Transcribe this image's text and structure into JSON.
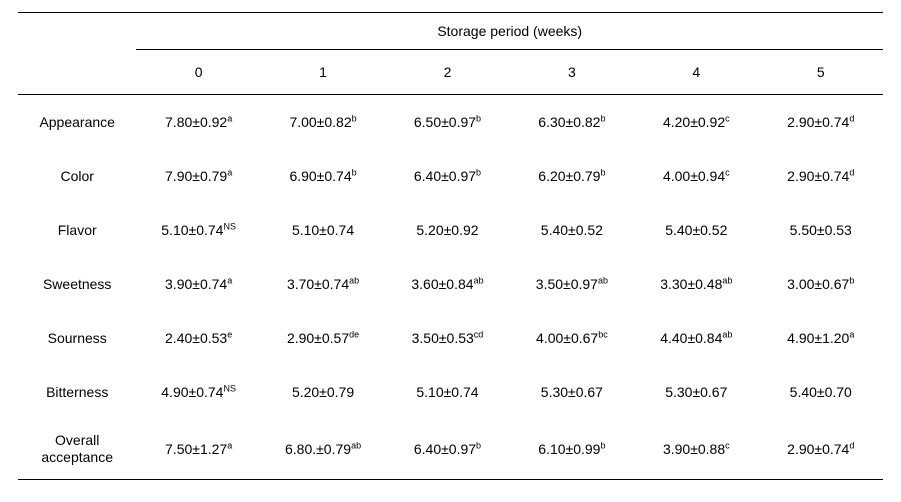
{
  "spanner_label": "Storage period (weeks)",
  "columns": [
    "0",
    "1",
    "2",
    "3",
    "4",
    "5"
  ],
  "rows": [
    {
      "label": "Appearance",
      "cells": [
        {
          "val": "7.80±0.92",
          "sup": "a"
        },
        {
          "val": "7.00±0.82",
          "sup": "b"
        },
        {
          "val": "6.50±0.97",
          "sup": "b"
        },
        {
          "val": "6.30±0.82",
          "sup": "b"
        },
        {
          "val": "4.20±0.92",
          "sup": "c"
        },
        {
          "val": "2.90±0.74",
          "sup": "d"
        }
      ]
    },
    {
      "label": "Color",
      "cells": [
        {
          "val": "7.90±0.79",
          "sup": "a"
        },
        {
          "val": "6.90±0.74",
          "sup": "b"
        },
        {
          "val": "6.40±0.97",
          "sup": "b"
        },
        {
          "val": "6.20±0.79",
          "sup": "b"
        },
        {
          "val": "4.00±0.94",
          "sup": "c"
        },
        {
          "val": "2.90±0.74",
          "sup": "d"
        }
      ]
    },
    {
      "label": "Flavor",
      "cells": [
        {
          "val": "5.10±0.74",
          "sup": "NS"
        },
        {
          "val": "5.10±0.74",
          "sup": ""
        },
        {
          "val": "5.20±0.92",
          "sup": ""
        },
        {
          "val": "5.40±0.52",
          "sup": ""
        },
        {
          "val": "5.40±0.52",
          "sup": ""
        },
        {
          "val": "5.50±0.53",
          "sup": ""
        }
      ]
    },
    {
      "label": "Sweetness",
      "cells": [
        {
          "val": "3.90±0.74",
          "sup": "a"
        },
        {
          "val": "3.70±0.74",
          "sup": "ab"
        },
        {
          "val": "3.60±0.84",
          "sup": "ab"
        },
        {
          "val": "3.50±0.97",
          "sup": "ab"
        },
        {
          "val": "3.30±0.48",
          "sup": "ab"
        },
        {
          "val": "3.00±0.67",
          "sup": "b"
        }
      ]
    },
    {
      "label": "Sourness",
      "cells": [
        {
          "val": "2.40±0.53",
          "sup": "e"
        },
        {
          "val": "2.90±0.57",
          "sup": "de"
        },
        {
          "val": "3.50±0.53",
          "sup": "cd"
        },
        {
          "val": "4.00±0.67",
          "sup": "bc"
        },
        {
          "val": "4.40±0.84",
          "sup": "ab"
        },
        {
          "val": "4.90±1.20",
          "sup": "a"
        }
      ]
    },
    {
      "label": "Bitterness",
      "cells": [
        {
          "val": "4.90±0.74",
          "sup": "NS"
        },
        {
          "val": "5.20±0.79",
          "sup": ""
        },
        {
          "val": "5.10±0.74",
          "sup": ""
        },
        {
          "val": "5.30±0.67",
          "sup": ""
        },
        {
          "val": "5.30±0.67",
          "sup": ""
        },
        {
          "val": "5.40±0.70",
          "sup": ""
        }
      ]
    },
    {
      "label": "Overall acceptance",
      "cells": [
        {
          "val": "7.50±1.27",
          "sup": "a"
        },
        {
          "val": "6.80.±0.79",
          "sup": "ab"
        },
        {
          "val": "6.40±0.97",
          "sup": "b"
        },
        {
          "val": "6.10±0.99",
          "sup": "b"
        },
        {
          "val": "3.90±0.88",
          "sup": "c"
        },
        {
          "val": "2.90±0.74",
          "sup": "d"
        }
      ]
    }
  ]
}
